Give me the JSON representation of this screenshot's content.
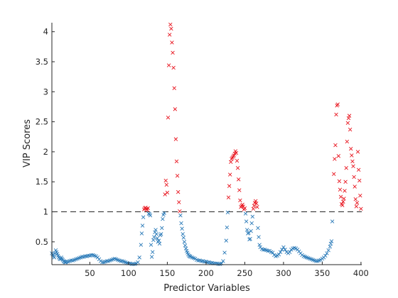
{
  "chart_data": {
    "type": "scatter",
    "xlabel": "Predictor Variables",
    "ylabel": "VIP Scores",
    "xlim": [
      1,
      401
    ],
    "ylim": [
      0.12,
      4.15
    ],
    "xticks": [
      50,
      100,
      150,
      200,
      250,
      300,
      350,
      400
    ],
    "yticks": [
      0.5,
      1,
      1.5,
      2,
      2.5,
      3,
      3.5,
      4
    ],
    "grid": false,
    "marker": "x",
    "reference_line": {
      "y": 1,
      "style": "dashed",
      "color": "#262626"
    },
    "colors": {
      "above": "#e8141e",
      "below": "#2a7ab8"
    },
    "series": [
      {
        "color": "#e8141e",
        "points": [
          [
            120,
            1.04
          ],
          [
            121,
            1.06
          ],
          [
            122,
            1.07
          ],
          [
            123,
            1.05
          ],
          [
            124,
            1.03
          ],
          [
            125,
            1.06
          ],
          [
            147,
            1.29
          ],
          [
            148,
            1.52
          ],
          [
            149,
            1.45
          ],
          [
            150,
            1.32
          ],
          [
            151,
            2.57
          ],
          [
            152,
            3.44
          ],
          [
            153,
            3.95
          ],
          [
            154,
            4.12
          ],
          [
            155,
            4.05
          ],
          [
            156,
            3.82
          ],
          [
            157,
            3.65
          ],
          [
            158,
            3.4
          ],
          [
            159,
            3.06
          ],
          [
            160,
            2.71
          ],
          [
            161,
            2.21
          ],
          [
            162,
            1.84
          ],
          [
            163,
            1.6
          ],
          [
            164,
            1.33
          ],
          [
            165,
            1.16
          ],
          [
            166,
            1.01
          ],
          [
            229,
            1.24
          ],
          [
            230,
            1.43
          ],
          [
            231,
            1.62
          ],
          [
            232,
            1.83
          ],
          [
            233,
            1.88
          ],
          [
            234,
            1.9
          ],
          [
            235,
            1.92
          ],
          [
            236,
            1.94
          ],
          [
            237,
            1.97
          ],
          [
            238,
            2.01
          ],
          [
            239,
            1.98
          ],
          [
            240,
            1.85
          ],
          [
            241,
            1.73
          ],
          [
            242,
            1.54
          ],
          [
            243,
            1.36
          ],
          [
            244,
            1.19
          ],
          [
            245,
            1.08
          ],
          [
            246,
            1.1
          ],
          [
            247,
            1.12
          ],
          [
            248,
            1.09
          ],
          [
            249,
            1.04
          ],
          [
            250,
            1.06
          ],
          [
            261,
            1.05
          ],
          [
            262,
            1.1
          ],
          [
            263,
            1.15
          ],
          [
            264,
            1.18
          ],
          [
            265,
            1.14
          ],
          [
            266,
            1.08
          ],
          [
            365,
            1.63
          ],
          [
            366,
            1.88
          ],
          [
            367,
            2.11
          ],
          [
            368,
            2.62
          ],
          [
            369,
            2.77
          ],
          [
            370,
            2.79
          ],
          [
            371,
            1.93
          ],
          [
            372,
            1.51
          ],
          [
            373,
            1.37
          ],
          [
            374,
            1.25
          ],
          [
            375,
            1.13
          ],
          [
            376,
            1.11
          ],
          [
            377,
            1.17
          ],
          [
            378,
            1.22
          ],
          [
            379,
            1.35
          ],
          [
            380,
            1.5
          ],
          [
            381,
            1.73
          ],
          [
            382,
            2.17
          ],
          [
            383,
            2.48
          ],
          [
            384,
            2.56
          ],
          [
            385,
            2.6
          ],
          [
            386,
            2.37
          ],
          [
            387,
            2.05
          ],
          [
            388,
            1.94
          ],
          [
            389,
            1.84
          ],
          [
            390,
            1.76
          ],
          [
            391,
            1.58
          ],
          [
            392,
            1.42
          ],
          [
            393,
            1.21
          ],
          [
            394,
            1.09
          ],
          [
            395,
            1.15
          ],
          [
            396,
            2.0
          ],
          [
            397,
            1.7
          ],
          [
            398,
            1.52
          ],
          [
            399,
            1.27
          ],
          [
            400,
            1.05
          ]
        ]
      },
      {
        "color": "#2a7ab8",
        "points": [
          [
            1,
            0.31
          ],
          [
            2,
            0.29
          ],
          [
            3,
            0.26
          ],
          [
            4,
            0.24
          ],
          [
            5,
            0.31
          ],
          [
            6,
            0.36
          ],
          [
            7,
            0.33
          ],
          [
            8,
            0.3
          ],
          [
            9,
            0.27
          ],
          [
            10,
            0.24
          ],
          [
            11,
            0.22
          ],
          [
            12,
            0.21
          ],
          [
            13,
            0.24
          ],
          [
            14,
            0.22
          ],
          [
            15,
            0.2
          ],
          [
            16,
            0.18
          ],
          [
            17,
            0.17
          ],
          [
            18,
            0.16
          ],
          [
            19,
            0.16
          ],
          [
            20,
            0.17
          ],
          [
            22,
            0.17
          ],
          [
            24,
            0.18
          ],
          [
            26,
            0.19
          ],
          [
            28,
            0.19
          ],
          [
            30,
            0.2
          ],
          [
            32,
            0.21
          ],
          [
            34,
            0.22
          ],
          [
            36,
            0.23
          ],
          [
            38,
            0.24
          ],
          [
            40,
            0.25
          ],
          [
            42,
            0.25
          ],
          [
            44,
            0.26
          ],
          [
            46,
            0.26
          ],
          [
            48,
            0.27
          ],
          [
            50,
            0.27
          ],
          [
            52,
            0.28
          ],
          [
            54,
            0.28
          ],
          [
            56,
            0.27
          ],
          [
            58,
            0.26
          ],
          [
            60,
            0.24
          ],
          [
            62,
            0.21
          ],
          [
            64,
            0.18
          ],
          [
            66,
            0.16
          ],
          [
            68,
            0.16
          ],
          [
            70,
            0.17
          ],
          [
            72,
            0.18
          ],
          [
            74,
            0.18
          ],
          [
            76,
            0.19
          ],
          [
            78,
            0.2
          ],
          [
            80,
            0.21
          ],
          [
            82,
            0.22
          ],
          [
            84,
            0.21
          ],
          [
            86,
            0.2
          ],
          [
            88,
            0.19
          ],
          [
            90,
            0.18
          ],
          [
            92,
            0.18
          ],
          [
            94,
            0.17
          ],
          [
            96,
            0.16
          ],
          [
            98,
            0.15
          ],
          [
            100,
            0.14
          ],
          [
            102,
            0.14
          ],
          [
            104,
            0.13
          ],
          [
            106,
            0.13
          ],
          [
            108,
            0.13
          ],
          [
            110,
            0.14
          ],
          [
            112,
            0.16
          ],
          [
            114,
            0.24
          ],
          [
            116,
            0.45
          ],
          [
            117,
            0.64
          ],
          [
            118,
            0.77
          ],
          [
            119,
            0.91
          ],
          [
            126,
            0.97
          ],
          [
            127,
            0.96
          ],
          [
            128,
            0.94
          ],
          [
            129,
            0.45
          ],
          [
            130,
            0.25
          ],
          [
            131,
            0.33
          ],
          [
            132,
            0.53
          ],
          [
            133,
            0.58
          ],
          [
            134,
            0.66
          ],
          [
            135,
            0.7
          ],
          [
            136,
            0.63
          ],
          [
            137,
            0.56
          ],
          [
            138,
            0.5
          ],
          [
            139,
            0.52
          ],
          [
            140,
            0.47
          ],
          [
            141,
            0.61
          ],
          [
            142,
            0.63
          ],
          [
            143,
            0.73
          ],
          [
            144,
            0.88
          ],
          [
            145,
            0.95
          ],
          [
            146,
            0.98
          ],
          [
            167,
            0.94
          ],
          [
            168,
            0.81
          ],
          [
            169,
            0.72
          ],
          [
            170,
            0.63
          ],
          [
            171,
            0.57
          ],
          [
            172,
            0.5
          ],
          [
            173,
            0.44
          ],
          [
            174,
            0.39
          ],
          [
            175,
            0.35
          ],
          [
            176,
            0.32
          ],
          [
            177,
            0.29
          ],
          [
            178,
            0.27
          ],
          [
            179,
            0.26
          ],
          [
            180,
            0.25
          ],
          [
            182,
            0.24
          ],
          [
            184,
            0.23
          ],
          [
            186,
            0.22
          ],
          [
            188,
            0.2
          ],
          [
            190,
            0.19
          ],
          [
            192,
            0.19
          ],
          [
            194,
            0.18
          ],
          [
            196,
            0.18
          ],
          [
            198,
            0.17
          ],
          [
            200,
            0.17
          ],
          [
            202,
            0.16
          ],
          [
            204,
            0.16
          ],
          [
            206,
            0.15
          ],
          [
            208,
            0.15
          ],
          [
            210,
            0.14
          ],
          [
            212,
            0.14
          ],
          [
            214,
            0.14
          ],
          [
            216,
            0.13
          ],
          [
            218,
            0.13
          ],
          [
            220,
            0.14
          ],
          [
            222,
            0.18
          ],
          [
            224,
            0.32
          ],
          [
            226,
            0.52
          ],
          [
            227,
            0.74
          ],
          [
            228,
            0.99
          ],
          [
            251,
            0.97
          ],
          [
            252,
            0.84
          ],
          [
            253,
            0.7
          ],
          [
            254,
            0.64
          ],
          [
            255,
            0.65
          ],
          [
            256,
            0.54
          ],
          [
            257,
            0.55
          ],
          [
            258,
            0.68
          ],
          [
            259,
            0.81
          ],
          [
            260,
            0.92
          ],
          [
            267,
            0.73
          ],
          [
            268,
            0.58
          ],
          [
            269,
            0.45
          ],
          [
            270,
            0.41
          ],
          [
            272,
            0.38
          ],
          [
            274,
            0.37
          ],
          [
            276,
            0.37
          ],
          [
            278,
            0.36
          ],
          [
            280,
            0.35
          ],
          [
            282,
            0.35
          ],
          [
            284,
            0.33
          ],
          [
            286,
            0.32
          ],
          [
            288,
            0.28
          ],
          [
            290,
            0.26
          ],
          [
            292,
            0.27
          ],
          [
            294,
            0.29
          ],
          [
            296,
            0.33
          ],
          [
            298,
            0.37
          ],
          [
            300,
            0.41
          ],
          [
            302,
            0.37
          ],
          [
            304,
            0.33
          ],
          [
            306,
            0.31
          ],
          [
            308,
            0.33
          ],
          [
            310,
            0.37
          ],
          [
            312,
            0.39
          ],
          [
            314,
            0.4
          ],
          [
            316,
            0.39
          ],
          [
            318,
            0.37
          ],
          [
            320,
            0.34
          ],
          [
            322,
            0.31
          ],
          [
            324,
            0.28
          ],
          [
            326,
            0.26
          ],
          [
            328,
            0.25
          ],
          [
            330,
            0.24
          ],
          [
            332,
            0.23
          ],
          [
            334,
            0.22
          ],
          [
            336,
            0.21
          ],
          [
            338,
            0.2
          ],
          [
            340,
            0.19
          ],
          [
            342,
            0.18
          ],
          [
            344,
            0.18
          ],
          [
            346,
            0.19
          ],
          [
            348,
            0.2
          ],
          [
            350,
            0.22
          ],
          [
            352,
            0.24
          ],
          [
            354,
            0.27
          ],
          [
            356,
            0.31
          ],
          [
            358,
            0.36
          ],
          [
            360,
            0.42
          ],
          [
            361,
            0.47
          ],
          [
            362,
            0.51
          ],
          [
            363,
            0.84
          ]
        ]
      }
    ]
  }
}
